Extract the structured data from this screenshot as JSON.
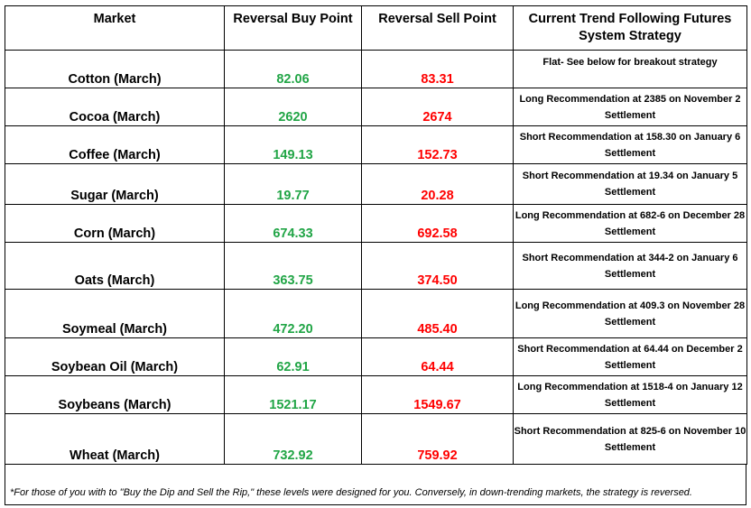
{
  "headers": {
    "market": "Market",
    "buy": "Reversal Buy Point",
    "sell": "Reversal Sell Point",
    "strategy": "Current Trend Following Futures System Strategy"
  },
  "rows": [
    {
      "market": "Cotton (March)",
      "buy": "82.06",
      "sell": "83.31",
      "strategy": "Flat- See below for breakout strategy"
    },
    {
      "market": "Cocoa (March)",
      "buy": "2620",
      "sell": "2674",
      "strategy": "Long Recommendation at 2385 on November 2 Settlement"
    },
    {
      "market": "Coffee (March)",
      "buy": "149.13",
      "sell": "152.73",
      "strategy": "Short Recommendation at 158.30 on January 6 Settlement"
    },
    {
      "market": "Sugar (March)",
      "buy": "19.77",
      "sell": "20.28",
      "strategy": "Short Recommendation at 19.34 on January 5 Settlement"
    },
    {
      "market": "Corn (March)",
      "buy": "674.33",
      "sell": "692.58",
      "strategy": "Long Recommendation at 682-6 on December 28 Settlement"
    },
    {
      "market": "Oats (March)",
      "buy": "363.75",
      "sell": "374.50",
      "strategy": "Short Recommendation at 344-2 on January 6 Settlement"
    },
    {
      "market": "Soymeal (March)",
      "buy": "472.20",
      "sell": "485.40",
      "strategy": "Long Recommendation at 409.3 on November 28 Settlement"
    },
    {
      "market": "Soybean Oil (March)",
      "buy": "62.91",
      "sell": "64.44",
      "strategy": "Short Recommendation at 64.44 on December 2 Settlement"
    },
    {
      "market": "Soybeans (March)",
      "buy": "1521.17",
      "sell": "1549.67",
      "strategy": "Long Recommendation at 1518-4 on January 12 Settlement"
    },
    {
      "market": "Wheat (March)",
      "buy": "732.92",
      "sell": "759.92",
      "strategy": "Short Recommendation at 825-6 on November 10 Settlement"
    }
  ],
  "footnote": "*For those of you with to \"Buy the Dip and Sell the Rip,\" these levels were designed for you. Conversely, in down-trending markets, the strategy is reversed.",
  "colors": {
    "buy": "#21a546",
    "sell": "#ff0000",
    "border": "#000000"
  }
}
